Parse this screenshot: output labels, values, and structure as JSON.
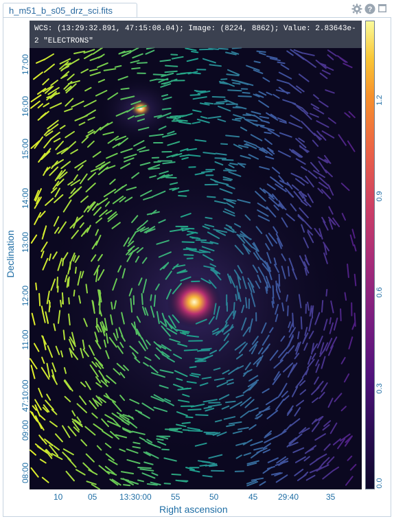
{
  "tab": {
    "title": "h_m51_b_s05_drz_sci.fits"
  },
  "controls": {
    "gear": "gear-icon",
    "help": "help-icon",
    "maximize": "maximize-icon"
  },
  "wcs": {
    "text": "WCS: (13:29:32.891, 47:15:08.04); Image: (8224, 8862); Value: 2.83643e-2 \"ELECTRONS\""
  },
  "axes": {
    "xlabel": "Right ascension",
    "ylabel": "Declination",
    "xticks": [
      "10",
      "05",
      "13:30:00",
      "55",
      "50",
      "45",
      "29:40",
      "35"
    ],
    "yticks": [
      "17:00",
      "16:00",
      "15:00",
      "14:00",
      "13:00",
      "12:00",
      "11:00",
      "47:10:00",
      "09:00",
      "08:00"
    ],
    "colorbar_ticks": [
      "1.2",
      "0.9",
      "0.6",
      "0.3",
      "0.0"
    ]
  },
  "colors": {
    "accent": "#1f6ea5",
    "background": "#0b0820",
    "overlay": "#464e5c"
  }
}
